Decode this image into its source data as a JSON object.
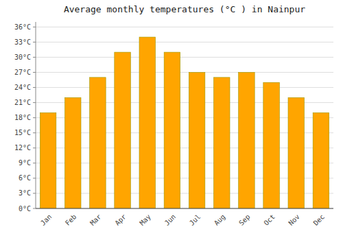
{
  "chart_data": {
    "type": "bar",
    "title": "Average monthly temperatures (°C ) in Nainpur",
    "categories": [
      "Jan",
      "Feb",
      "Mar",
      "Apr",
      "May",
      "Jun",
      "Jul",
      "Aug",
      "Sep",
      "Oct",
      "Nov",
      "Dec"
    ],
    "values": [
      19,
      22,
      26,
      31,
      34,
      31,
      27,
      26,
      27,
      25,
      22,
      19
    ],
    "color": "#FFA500",
    "ylim": [
      0,
      37
    ],
    "yticks": [
      {
        "value": 0,
        "label": "0°C"
      },
      {
        "value": 3,
        "label": "3°C"
      },
      {
        "value": 6,
        "label": "6°C"
      },
      {
        "value": 9,
        "label": "9°C"
      },
      {
        "value": 12,
        "label": "12°C"
      },
      {
        "value": 15,
        "label": "15°C"
      },
      {
        "value": 18,
        "label": "18°C"
      },
      {
        "value": 21,
        "label": "21°C"
      },
      {
        "value": 24,
        "label": "24°C"
      },
      {
        "value": 27,
        "label": "27°C"
      },
      {
        "value": 30,
        "label": "30°C"
      },
      {
        "value": 33,
        "label": "33°C"
      },
      {
        "value": 36,
        "label": "36°C"
      }
    ],
    "grid": true
  }
}
